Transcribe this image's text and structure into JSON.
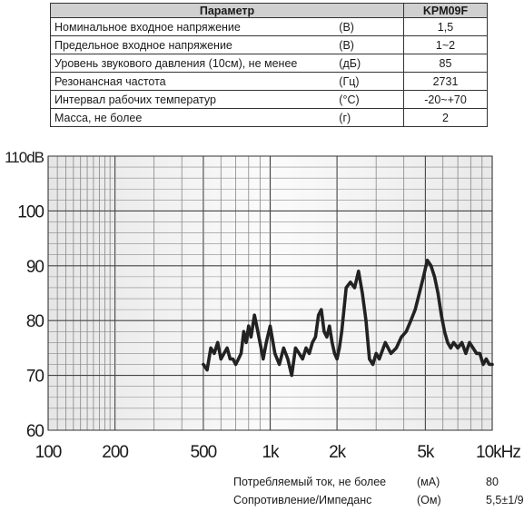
{
  "table": {
    "headers": [
      "Параметр",
      "KPM09F"
    ],
    "rows": [
      {
        "name": "Номинальное входное напряжение",
        "unit": "(В)",
        "value": "1,5"
      },
      {
        "name": "Предельное входное напряжение",
        "unit": "(В)",
        "value": "1~2"
      },
      {
        "name": "Уровень звукового давления (10см), не менее",
        "unit": "(дБ)",
        "value": "85"
      },
      {
        "name": "Резонансная частота",
        "unit": "(Гц)",
        "value": "2731"
      },
      {
        "name": "Интервал рабочих температур",
        "unit": "(°C)",
        "value": "-20~+70"
      },
      {
        "name": "Масса, не более",
        "unit": "(г)",
        "value": "2"
      }
    ]
  },
  "chart_data": {
    "type": "line",
    "x_scale": "log",
    "xlim": [
      100,
      10000
    ],
    "ylim": [
      60,
      110
    ],
    "grid": true,
    "y_ticks": [
      "110dB",
      "100",
      "90",
      "80",
      "70",
      "60"
    ],
    "x_ticks": [
      "100",
      "200",
      "500",
      "1k",
      "2k",
      "5k",
      "10kHz"
    ],
    "series": [
      {
        "x": [
          500,
          520,
          540,
          560,
          580,
          600,
          620,
          640,
          660,
          680,
          700,
          720,
          740,
          760,
          780,
          800,
          820,
          850,
          870,
          900,
          930,
          960,
          1000,
          1050,
          1100,
          1150,
          1200,
          1250,
          1300,
          1350,
          1400,
          1450,
          1500,
          1550,
          1600,
          1650,
          1700,
          1750,
          1800,
          1850,
          1900,
          1950,
          2000,
          2050,
          2100,
          2200,
          2300,
          2400,
          2500,
          2600,
          2700,
          2800,
          2900,
          3000,
          3100,
          3300,
          3500,
          3700,
          3900,
          4100,
          4300,
          4500,
          4700,
          4900,
          5100,
          5300,
          5500,
          5700,
          5900,
          6100,
          6300,
          6500,
          6700,
          7000,
          7300,
          7600,
          7900,
          8200,
          8500,
          8800,
          9100,
          9400,
          9700,
          10000
        ],
        "y": [
          72,
          71,
          75,
          74,
          76,
          73,
          74,
          75,
          73,
          73,
          72,
          73,
          74,
          78,
          76,
          79,
          77,
          81,
          79,
          76,
          73,
          76,
          79,
          74,
          72,
          75,
          73,
          70,
          75,
          74,
          73,
          75,
          74,
          76,
          77,
          81,
          82,
          78,
          77,
          79,
          76,
          74,
          73,
          75,
          78,
          86,
          87,
          86,
          89,
          85,
          80,
          73,
          72,
          74,
          73,
          76,
          74,
          75,
          77,
          78,
          80,
          82,
          85,
          88,
          91,
          90,
          88,
          85,
          81,
          78,
          76,
          75,
          76,
          75,
          76,
          74,
          76,
          75,
          74,
          74,
          72,
          73,
          72,
          72
        ]
      }
    ]
  },
  "footer": [
    {
      "name": "Потребляемый ток, не более",
      "unit": "(мА)",
      "value": "80"
    },
    {
      "name": "Сопротивление/Импеданс",
      "unit": "(Ом)",
      "value": "5,5±1/9"
    }
  ]
}
